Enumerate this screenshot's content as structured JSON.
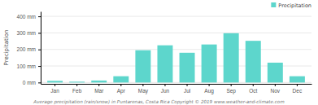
{
  "chart_data": {
    "type": "bar",
    "categories": [
      "Jan",
      "Feb",
      "Mar",
      "Apr",
      "May",
      "Jun",
      "Jul",
      "Aug",
      "Sep",
      "Oct",
      "Nov",
      "Dec"
    ],
    "series": [
      {
        "name": "Precipitation",
        "color": "#5dd6cc",
        "values": [
          10,
          5,
          12,
          38,
          195,
          225,
          180,
          230,
          298,
          252,
          120,
          38
        ]
      }
    ],
    "ylabel": "Precipitation",
    "xlabel": "Average precipitation (rain/snow) in Puntarenas, Costa Rica   Copyright © 2019 www.weather-and-climate.com",
    "ylim": [
      -8,
      430
    ],
    "yticks": [
      {
        "value": 0,
        "label": "0 mm"
      },
      {
        "value": 100,
        "label": "100 mm"
      },
      {
        "value": 200,
        "label": "200 mm"
      },
      {
        "value": 300,
        "label": "300 mm"
      },
      {
        "value": 400,
        "label": "400 mm"
      }
    ],
    "grid": true,
    "legend": "upper right"
  }
}
